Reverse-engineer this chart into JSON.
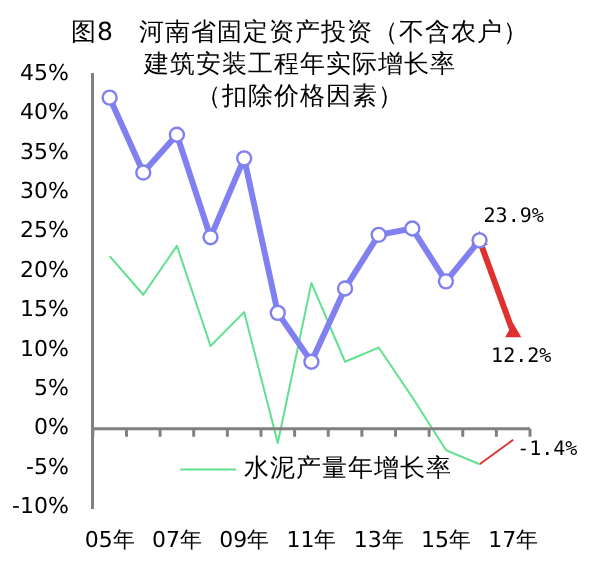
{
  "chart_data": {
    "type": "line",
    "title": "图8　河南省固定资产投资（不含农户）建筑安装工程年实际增长率",
    "subtitle": "（扣除价格因素）",
    "categories": [
      "05年",
      null,
      "07年",
      null,
      "09年",
      null,
      "11年",
      null,
      "13年",
      null,
      "15年",
      null,
      "17年"
    ],
    "series": [
      {
        "color": "#8080f0",
        "marker": "circle",
        "values": [
          42,
          32.5,
          37.3,
          24.3,
          34.3,
          14.7,
          8.5,
          17.8,
          24.6,
          25.4,
          18.7,
          23.9,
          null
        ]
      },
      {
        "color": "#e03030",
        "marker": "triangle",
        "values": [
          null,
          null,
          null,
          null,
          null,
          null,
          null,
          null,
          null,
          null,
          null,
          23.9,
          12.2
        ],
        "value_labels": [
          null,
          null,
          null,
          null,
          null,
          null,
          null,
          null,
          null,
          null,
          null,
          "23.9%",
          "12.2%"
        ]
      },
      {
        "name": "水泥产量年增长率",
        "color": "#60e090",
        "marker": "none",
        "values": [
          21.9,
          17,
          23.2,
          10.5,
          14.8,
          -1.8,
          18.5,
          8.5,
          10.3,
          4,
          -2.7,
          -4.5,
          null
        ]
      },
      {
        "color": "#e03030",
        "marker": "none",
        "values": [
          null,
          null,
          null,
          null,
          null,
          null,
          null,
          null,
          null,
          null,
          null,
          -4.5,
          -1.4
        ],
        "value_labels": [
          null,
          null,
          null,
          null,
          null,
          null,
          null,
          null,
          null,
          null,
          null,
          null,
          "-1.4%"
        ]
      }
    ],
    "ylim": [
      -10,
      45
    ],
    "yticks": [
      {
        "value": -10,
        "label": "-10%"
      },
      {
        "value": -5,
        "label": "-5%"
      },
      {
        "value": 0,
        "label": "0%"
      },
      {
        "value": 5,
        "label": "5%"
      },
      {
        "value": 10,
        "label": "10%"
      },
      {
        "value": 15,
        "label": "15%"
      },
      {
        "value": 20,
        "label": "20%"
      },
      {
        "value": 25,
        "label": "25%"
      },
      {
        "value": 30,
        "label": "30%"
      },
      {
        "value": 35,
        "label": "35%"
      },
      {
        "value": 40,
        "label": "40%"
      },
      {
        "value": 45,
        "label": "45%"
      }
    ],
    "legend": "bottom"
  }
}
